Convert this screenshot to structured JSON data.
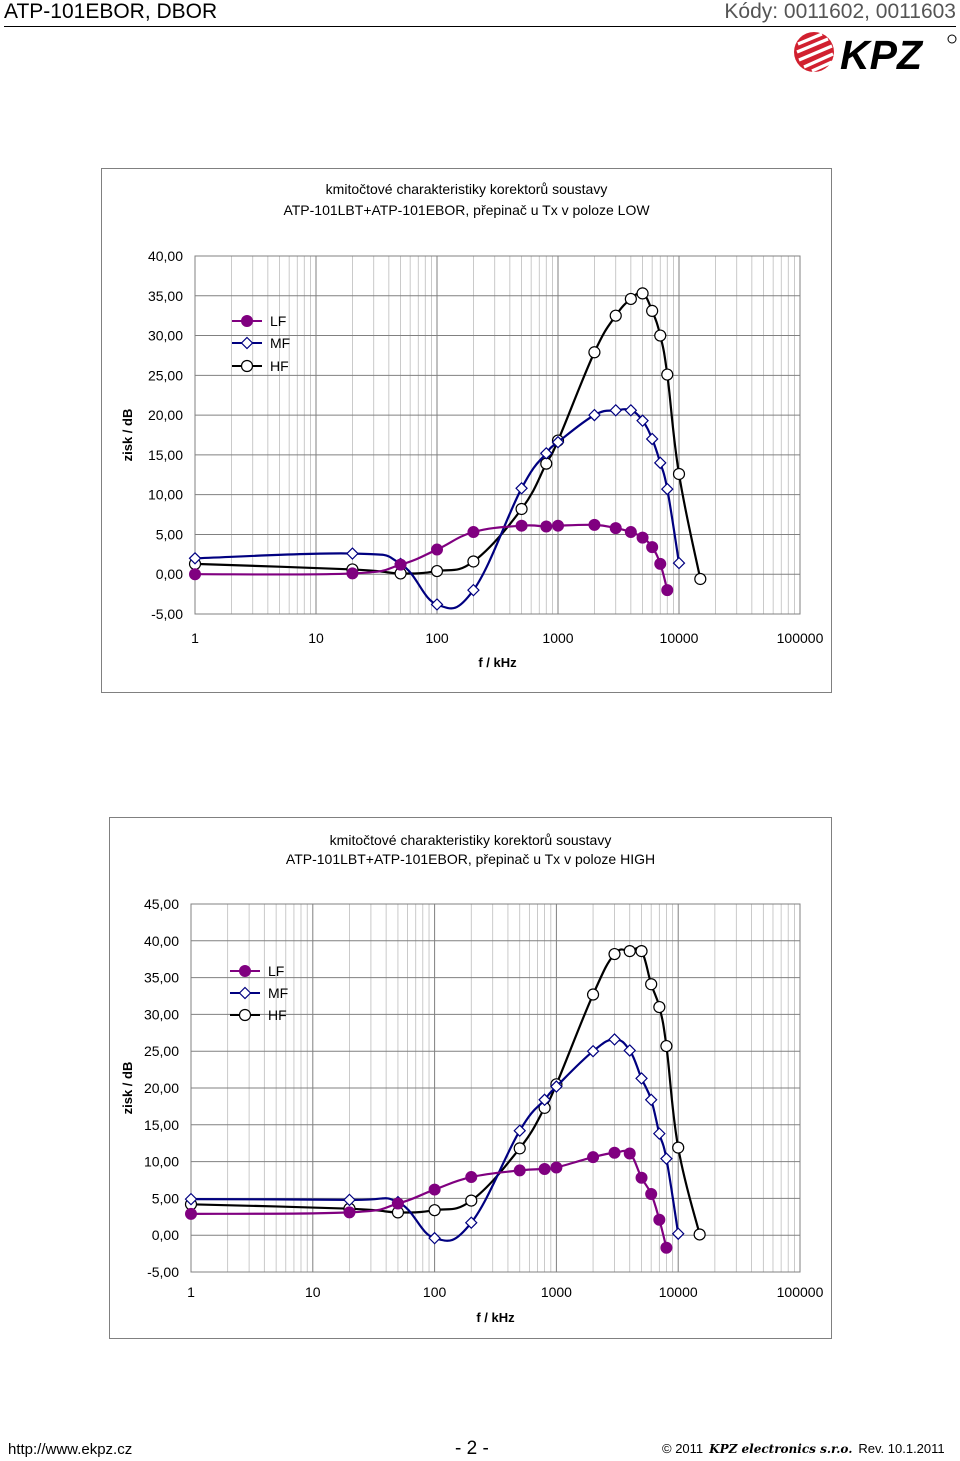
{
  "header": {
    "title": "ATP-101EBOR, DBOR",
    "codes": "Kódy: 0011602, 0011603",
    "logo_text": "KPZ"
  },
  "footer": {
    "url": "http://www.ekpz.cz",
    "page": "- 2 -",
    "copyright": "© 2011",
    "brand": "KPZ electronics s.r.o.",
    "rev": "Rev. 10.1.2011"
  },
  "colors": {
    "LF": "#800080",
    "MF": "#000080",
    "HF": "#000000"
  },
  "chart_data": [
    {
      "type": "line",
      "title_lines": [
        "kmitočtové charakteristiky korektorů soustavy",
        "ATP-101LBT+ATP-101EBOR, přepinač u Tx v poloze LOW"
      ],
      "xlabel": "f / kHz",
      "ylabel": "zisk / dB",
      "x_scale": "log",
      "xlim": [
        1,
        100000
      ],
      "x_ticks": [
        "1",
        "10",
        "100",
        "1000",
        "10000",
        "100000"
      ],
      "ylim": [
        -5,
        40
      ],
      "y_ticks": [
        "-5,00",
        "0,00",
        "5,00",
        "10,00",
        "15,00",
        "20,00",
        "25,00",
        "30,00",
        "35,00",
        "40,00"
      ],
      "grid": true,
      "legend": "top-left",
      "series": [
        {
          "name": "LF",
          "marker": "filled-circle",
          "x": [
            1,
            20,
            50,
            100,
            200,
            500,
            800,
            1000,
            2000,
            3000,
            4000,
            5000,
            6000,
            7000,
            8000
          ],
          "y": [
            0,
            0.1,
            1.2,
            3.1,
            5.3,
            6.1,
            6.0,
            6.1,
            6.2,
            5.8,
            5.3,
            4.6,
            3.4,
            1.3,
            -2.0
          ]
        },
        {
          "name": "MF",
          "marker": "diamond",
          "x": [
            1,
            20,
            50,
            100,
            200,
            500,
            800,
            1000,
            2000,
            3000,
            4000,
            5000,
            6000,
            7000,
            8000,
            10000
          ],
          "y": [
            2.0,
            2.6,
            1.3,
            -3.8,
            -2.0,
            10.8,
            15.2,
            16.6,
            20.0,
            20.6,
            20.6,
            19.3,
            17.0,
            14.0,
            10.7,
            1.4
          ]
        },
        {
          "name": "HF",
          "marker": "open-circle",
          "x": [
            1,
            20,
            50,
            100,
            200,
            500,
            800,
            1000,
            2000,
            3000,
            4000,
            5000,
            6000,
            7000,
            8000,
            10000,
            15000
          ],
          "y": [
            1.3,
            0.6,
            0.1,
            0.4,
            1.6,
            8.2,
            13.9,
            16.8,
            27.9,
            32.5,
            34.6,
            35.3,
            33.1,
            30.0,
            25.1,
            12.6,
            -0.6
          ]
        }
      ]
    },
    {
      "type": "line",
      "title_lines": [
        "kmitočtové charakteristiky korektorů soustavy",
        "ATP-101LBT+ATP-101EBOR, přepinač u Tx v poloze HIGH"
      ],
      "xlabel": "f / kHz",
      "ylabel": "zisk / dB",
      "x_scale": "log",
      "xlim": [
        1,
        100000
      ],
      "x_ticks": [
        "1",
        "10",
        "100",
        "1000",
        "10000",
        "100000"
      ],
      "ylim": [
        -5,
        45
      ],
      "y_ticks": [
        "-5,00",
        "0,00",
        "5,00",
        "10,00",
        "15,00",
        "20,00",
        "25,00",
        "30,00",
        "35,00",
        "40,00",
        "45,00"
      ],
      "grid": true,
      "legend": "top-left",
      "series": [
        {
          "name": "LF",
          "marker": "filled-circle",
          "x": [
            1,
            20,
            50,
            100,
            200,
            500,
            800,
            1000,
            2000,
            3000,
            4000,
            5000,
            6000,
            7000,
            8000
          ],
          "y": [
            2.9,
            3.1,
            4.3,
            6.2,
            7.9,
            8.8,
            9.0,
            9.2,
            10.6,
            11.2,
            11.1,
            7.8,
            5.6,
            2.1,
            -1.7
          ]
        },
        {
          "name": "MF",
          "marker": "diamond",
          "x": [
            1,
            20,
            50,
            100,
            200,
            500,
            800,
            1000,
            2000,
            3000,
            4000,
            5000,
            6000,
            7000,
            8000,
            10000
          ],
          "y": [
            4.9,
            4.8,
            4.5,
            -0.4,
            1.7,
            14.2,
            18.4,
            20.2,
            25.0,
            26.6,
            25.1,
            21.3,
            18.4,
            13.8,
            10.4,
            0.2
          ]
        },
        {
          "name": "HF",
          "marker": "open-circle",
          "x": [
            1,
            20,
            50,
            100,
            200,
            500,
            800,
            1000,
            2000,
            3000,
            4000,
            5000,
            6000,
            7000,
            8000,
            10000,
            15000
          ],
          "y": [
            4.2,
            3.6,
            3.1,
            3.4,
            4.7,
            11.8,
            17.3,
            20.5,
            32.7,
            38.2,
            38.6,
            38.6,
            34.1,
            31.0,
            25.7,
            11.9,
            0.1
          ]
        }
      ]
    }
  ]
}
